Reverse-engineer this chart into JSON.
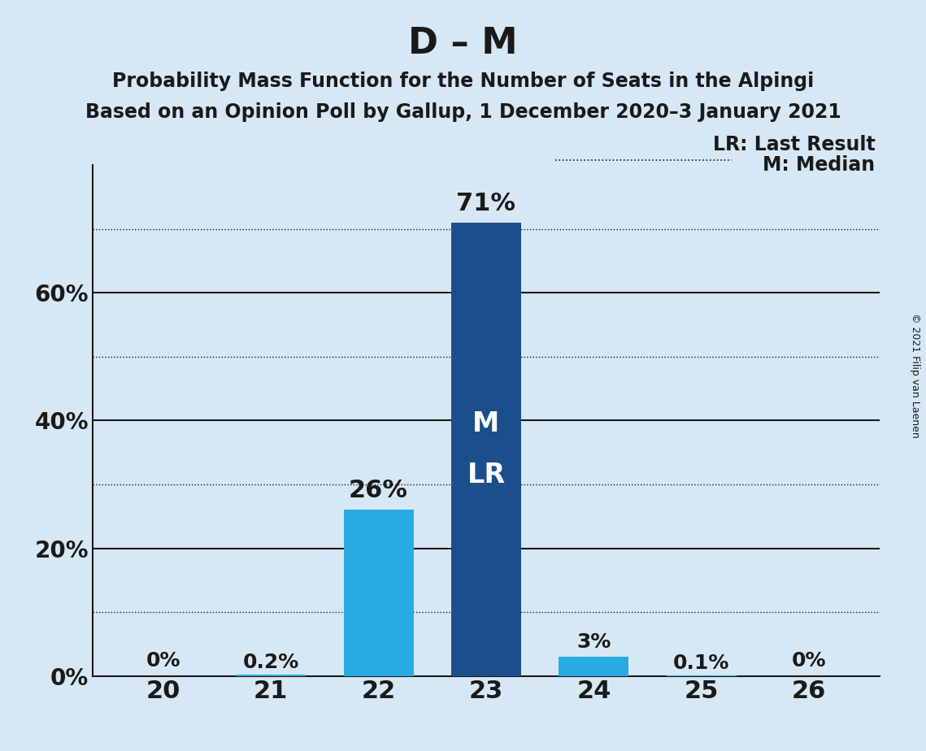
{
  "title": "D – M",
  "subtitle1": "Probability Mass Function for the Number of Seats in the Alpingi",
  "subtitle2": "Based on an Opinion Poll by Gallup, 1 December 2020–3 January 2021",
  "copyright": "© 2021 Filip van Laenen",
  "categories": [
    20,
    21,
    22,
    23,
    24,
    25,
    26
  ],
  "values": [
    0.0,
    0.2,
    26.0,
    71.0,
    3.0,
    0.1,
    0.0
  ],
  "bar_colors": [
    "#29ABE2",
    "#29ABE2",
    "#29ABE2",
    "#1A4F8C",
    "#29ABE2",
    "#29ABE2",
    "#29ABE2"
  ],
  "bar_labels": [
    "0%",
    "0.2%",
    "26%",
    "71%",
    "3%",
    "0.1%",
    "0%"
  ],
  "median_seat": 23,
  "last_result_seat": 23,
  "median_label": "M",
  "last_result_label": "LR",
  "legend_lr": "LR: Last Result",
  "legend_m": "M: Median",
  "background_color": "#D6E8F5",
  "solid_yticks": [
    20,
    40,
    60
  ],
  "dotted_yticks": [
    10,
    30,
    50,
    70
  ],
  "ytick_labels_vals": [
    0,
    20,
    40,
    60
  ],
  "ytick_labels_strs": [
    "0%",
    "20%",
    "40%",
    "60%"
  ],
  "ylim": [
    0,
    80
  ],
  "title_fontsize": 32,
  "subtitle_fontsize": 17,
  "bar_label_fontsize": 18,
  "axis_tick_fontsize": 20,
  "inside_bar_fontsize": 24,
  "grid_color": "#1a1a1a",
  "axis_color": "#1a1a1a",
  "text_color": "#1a1a1a"
}
